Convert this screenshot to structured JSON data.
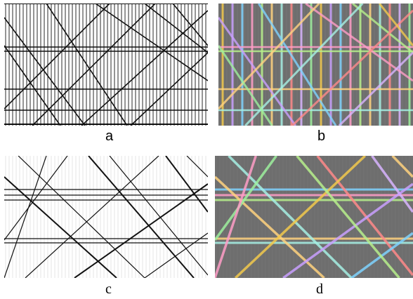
{
  "captions": {
    "a": "a",
    "b": "b",
    "c": "c",
    "d": "d"
  },
  "colors": {
    "ink": "#111111",
    "overlay_background": "#6e6e6e",
    "segment_palette": [
      "#f2c94c",
      "#c9a0ff",
      "#7fd3ff",
      "#ff9ec7",
      "#b7f08c",
      "#ffd27f",
      "#a6f0e4",
      "#ff8a8a",
      "#d8b4ff",
      "#9ef09e"
    ]
  }
}
